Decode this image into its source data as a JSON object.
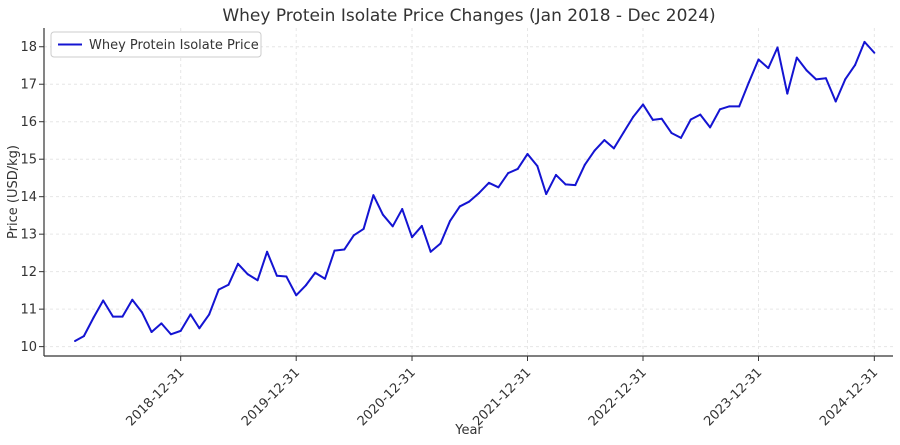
{
  "chart_data": {
    "type": "line",
    "title": "Whey Protein Isolate Price Changes (Jan 2018 - Dec 2024)",
    "xlabel": "Year",
    "ylabel": "Price (USD/kg)",
    "ylim": [
      9.75,
      18.5
    ],
    "yticks": [
      10,
      11,
      12,
      13,
      14,
      15,
      16,
      17,
      18
    ],
    "xticks": [
      "2018-12-31",
      "2019-12-31",
      "2020-12-31",
      "2021-12-31",
      "2022-12-31",
      "2023-12-31",
      "2024-12-31"
    ],
    "xlim": [
      "2017-10-25",
      "2025-02-28"
    ],
    "grid": true,
    "legend_position": "top-left",
    "series": [
      {
        "name": "Whey Protein Isolate Price",
        "color": "#1414d2",
        "x": [
          "2018-01-31",
          "2018-02-28",
          "2018-03-31",
          "2018-04-30",
          "2018-05-31",
          "2018-06-30",
          "2018-07-31",
          "2018-08-31",
          "2018-09-30",
          "2018-10-31",
          "2018-11-30",
          "2018-12-31",
          "2019-01-31",
          "2019-02-28",
          "2019-03-31",
          "2019-04-30",
          "2019-05-31",
          "2019-06-30",
          "2019-07-31",
          "2019-08-31",
          "2019-09-30",
          "2019-10-31",
          "2019-11-30",
          "2019-12-31",
          "2020-01-31",
          "2020-02-29",
          "2020-03-31",
          "2020-04-30",
          "2020-05-31",
          "2020-06-30",
          "2020-07-31",
          "2020-08-31",
          "2020-09-30",
          "2020-10-31",
          "2020-11-30",
          "2020-12-31",
          "2021-01-31",
          "2021-02-28",
          "2021-03-31",
          "2021-04-30",
          "2021-05-31",
          "2021-06-30",
          "2021-07-31",
          "2021-08-31",
          "2021-09-30",
          "2021-10-31",
          "2021-11-30",
          "2021-12-31",
          "2022-01-31",
          "2022-02-28",
          "2022-03-31",
          "2022-04-30",
          "2022-05-31",
          "2022-06-30",
          "2022-07-31",
          "2022-08-31",
          "2022-09-30",
          "2022-10-31",
          "2022-11-30",
          "2022-12-31",
          "2023-01-31",
          "2023-02-28",
          "2023-03-31",
          "2023-04-30",
          "2023-05-31",
          "2023-06-30",
          "2023-07-31",
          "2023-08-31",
          "2023-09-30",
          "2023-10-31",
          "2023-11-30",
          "2023-12-31",
          "2024-01-31",
          "2024-02-29",
          "2024-03-31",
          "2024-04-30",
          "2024-05-31",
          "2024-06-30",
          "2024-07-31",
          "2024-08-31",
          "2024-09-30",
          "2024-10-31",
          "2024-11-30",
          "2024-12-31"
        ],
        "values": [
          10.15,
          10.28,
          10.78,
          11.23,
          10.8,
          10.8,
          11.25,
          10.91,
          10.39,
          10.62,
          10.33,
          10.42,
          10.86,
          10.49,
          10.86,
          11.52,
          11.65,
          12.21,
          11.93,
          11.77,
          12.53,
          11.89,
          11.87,
          11.37,
          11.64,
          11.97,
          11.81,
          12.56,
          12.59,
          12.97,
          13.14,
          14.04,
          13.52,
          13.21,
          13.67,
          12.92,
          13.22,
          12.53,
          12.75,
          13.35,
          13.74,
          13.87,
          14.1,
          14.37,
          14.25,
          14.63,
          14.74,
          15.14,
          14.82,
          14.07,
          14.58,
          14.33,
          14.31,
          14.85,
          15.23,
          15.51,
          15.29,
          15.72,
          16.13,
          16.46,
          16.05,
          16.08,
          15.7,
          15.57,
          16.06,
          16.19,
          15.85,
          16.33,
          16.41,
          16.41,
          17.04,
          17.66,
          17.43,
          17.98,
          16.75,
          17.71,
          17.37,
          17.13,
          17.16,
          16.54,
          17.13,
          17.51,
          18.13,
          17.84
        ]
      }
    ]
  }
}
